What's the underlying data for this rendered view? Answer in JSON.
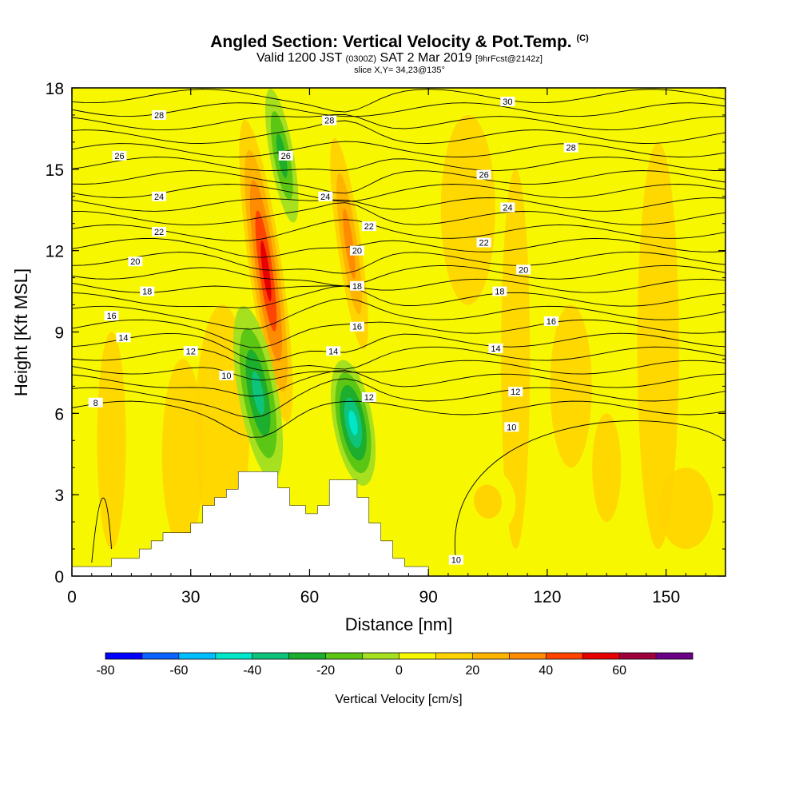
{
  "title": {
    "main": "Angled Section: Vertical Velocity & Pot.Temp.",
    "copyright": "(C)",
    "valid_prefix": "Valid 1200 JST",
    "valid_utc": "(0300Z)",
    "valid_date": "SAT 2 Mar 2019",
    "forecast": "[9hrFcst@2142z]",
    "slice": "slice X,Y= 34,23@135°"
  },
  "chart_data": {
    "type": "heatmap",
    "xlabel": "Distance [nm]",
    "ylabel": "Height [Kft MSL]",
    "xlim": [
      0,
      165
    ],
    "ylim": [
      0,
      18
    ],
    "xticks": [
      0,
      30,
      60,
      90,
      120,
      150
    ],
    "yticks": [
      0,
      3,
      6,
      9,
      12,
      15,
      18
    ],
    "background_level_cm_s": [
      0,
      10
    ],
    "colorbar": {
      "label": "Vertical Velocity [cm/s]",
      "ticks": [
        -80,
        -60,
        -40,
        -20,
        0,
        20,
        40,
        60
      ],
      "levels": [
        -80,
        -70,
        -60,
        -50,
        -40,
        -30,
        -20,
        -10,
        0,
        10,
        20,
        30,
        40,
        50,
        60,
        70
      ],
      "colors": [
        "#0000ff",
        "#0a62ff",
        "#00bfff",
        "#00e6c8",
        "#0ec47a",
        "#1cae2c",
        "#5cc614",
        "#a6e01e",
        "#f7f700",
        "#ffd400",
        "#ffb400",
        "#ff8c00",
        "#ff4400",
        "#e60000",
        "#a0003c",
        "#6a0086"
      ]
    },
    "velocity_features": [
      {
        "kind": "updraft",
        "x": [
          44,
          54
        ],
        "y": [
          4.5,
          18
        ],
        "max_cm_s": 60
      },
      {
        "kind": "updraft",
        "x": [
          66,
          74
        ],
        "y": [
          7,
          17.5
        ],
        "max_cm_s": 40
      },
      {
        "kind": "downdraft",
        "x": [
          42,
          52
        ],
        "y": [
          3.5,
          10
        ],
        "min_cm_s": -40
      },
      {
        "kind": "downdraft",
        "x": [
          66,
          76
        ],
        "y": [
          3.3,
          8
        ],
        "min_cm_s": -50
      },
      {
        "kind": "downdraft",
        "x": [
          50,
          56
        ],
        "y": [
          13,
          18
        ],
        "min_cm_s": -30
      },
      {
        "kind": "updraft",
        "x": [
          98,
          112
        ],
        "y": [
          1.5,
          4
        ],
        "max_cm_s": 20
      }
    ],
    "terrain_nm_kft": [
      [
        0,
        0.35
      ],
      [
        10,
        0.35
      ],
      [
        10,
        0.65
      ],
      [
        17,
        0.65
      ],
      [
        17,
        1.0
      ],
      [
        20,
        1.0
      ],
      [
        20,
        1.3
      ],
      [
        23,
        1.3
      ],
      [
        23,
        1.6
      ],
      [
        30,
        1.6
      ],
      [
        30,
        1.95
      ],
      [
        33,
        1.95
      ],
      [
        33,
        2.6
      ],
      [
        36,
        2.6
      ],
      [
        36,
        2.9
      ],
      [
        39,
        2.9
      ],
      [
        39,
        3.2
      ],
      [
        42,
        3.2
      ],
      [
        42,
        3.85
      ],
      [
        52,
        3.85
      ],
      [
        52,
        3.25
      ],
      [
        55,
        3.25
      ],
      [
        55,
        2.6
      ],
      [
        59,
        2.6
      ],
      [
        59,
        2.3
      ],
      [
        62,
        2.3
      ],
      [
        62,
        2.6
      ],
      [
        65,
        2.6
      ],
      [
        65,
        3.55
      ],
      [
        72,
        3.55
      ],
      [
        72,
        2.9
      ],
      [
        75,
        2.9
      ],
      [
        75,
        1.95
      ],
      [
        78,
        1.95
      ],
      [
        78,
        1.3
      ],
      [
        81,
        1.3
      ],
      [
        81,
        0.65
      ],
      [
        84,
        0.65
      ],
      [
        84,
        0.35
      ],
      [
        90,
        0.35
      ],
      [
        90,
        0
      ],
      [
        0,
        0
      ]
    ],
    "pot_temp_contour_labels": [
      {
        "value": "8",
        "x": 6,
        "y": 6.4
      },
      {
        "value": "10",
        "x": 39,
        "y": 7.4
      },
      {
        "value": "10",
        "x": 111,
        "y": 5.5
      },
      {
        "value": "10",
        "x": 97,
        "y": 0.6
      },
      {
        "value": "12",
        "x": 30,
        "y": 8.3
      },
      {
        "value": "12",
        "x": 75,
        "y": 6.6
      },
      {
        "value": "12",
        "x": 112,
        "y": 6.8
      },
      {
        "value": "14",
        "x": 13,
        "y": 8.8
      },
      {
        "value": "14",
        "x": 66,
        "y": 8.3
      },
      {
        "value": "14",
        "x": 107,
        "y": 8.4
      },
      {
        "value": "16",
        "x": 10,
        "y": 9.6
      },
      {
        "value": "16",
        "x": 72,
        "y": 9.2
      },
      {
        "value": "16",
        "x": 121,
        "y": 9.4
      },
      {
        "value": "18",
        "x": 19,
        "y": 10.5
      },
      {
        "value": "18",
        "x": 72,
        "y": 10.7
      },
      {
        "value": "18",
        "x": 108,
        "y": 10.5
      },
      {
        "value": "20",
        "x": 16,
        "y": 11.6
      },
      {
        "value": "20",
        "x": 72,
        "y": 12.0
      },
      {
        "value": "20",
        "x": 114,
        "y": 11.3
      },
      {
        "value": "22",
        "x": 22,
        "y": 12.7
      },
      {
        "value": "22",
        "x": 75,
        "y": 12.9
      },
      {
        "value": "22",
        "x": 104,
        "y": 12.3
      },
      {
        "value": "24",
        "x": 22,
        "y": 14.0
      },
      {
        "value": "24",
        "x": 64,
        "y": 14.0
      },
      {
        "value": "24",
        "x": 110,
        "y": 13.6
      },
      {
        "value": "26",
        "x": 12,
        "y": 15.5
      },
      {
        "value": "26",
        "x": 54,
        "y": 15.5
      },
      {
        "value": "26",
        "x": 104,
        "y": 14.8
      },
      {
        "value": "28",
        "x": 22,
        "y": 17.0
      },
      {
        "value": "28",
        "x": 65,
        "y": 16.8
      },
      {
        "value": "28",
        "x": 126,
        "y": 15.8
      },
      {
        "value": "30",
        "x": 110,
        "y": 17.5
      }
    ]
  }
}
